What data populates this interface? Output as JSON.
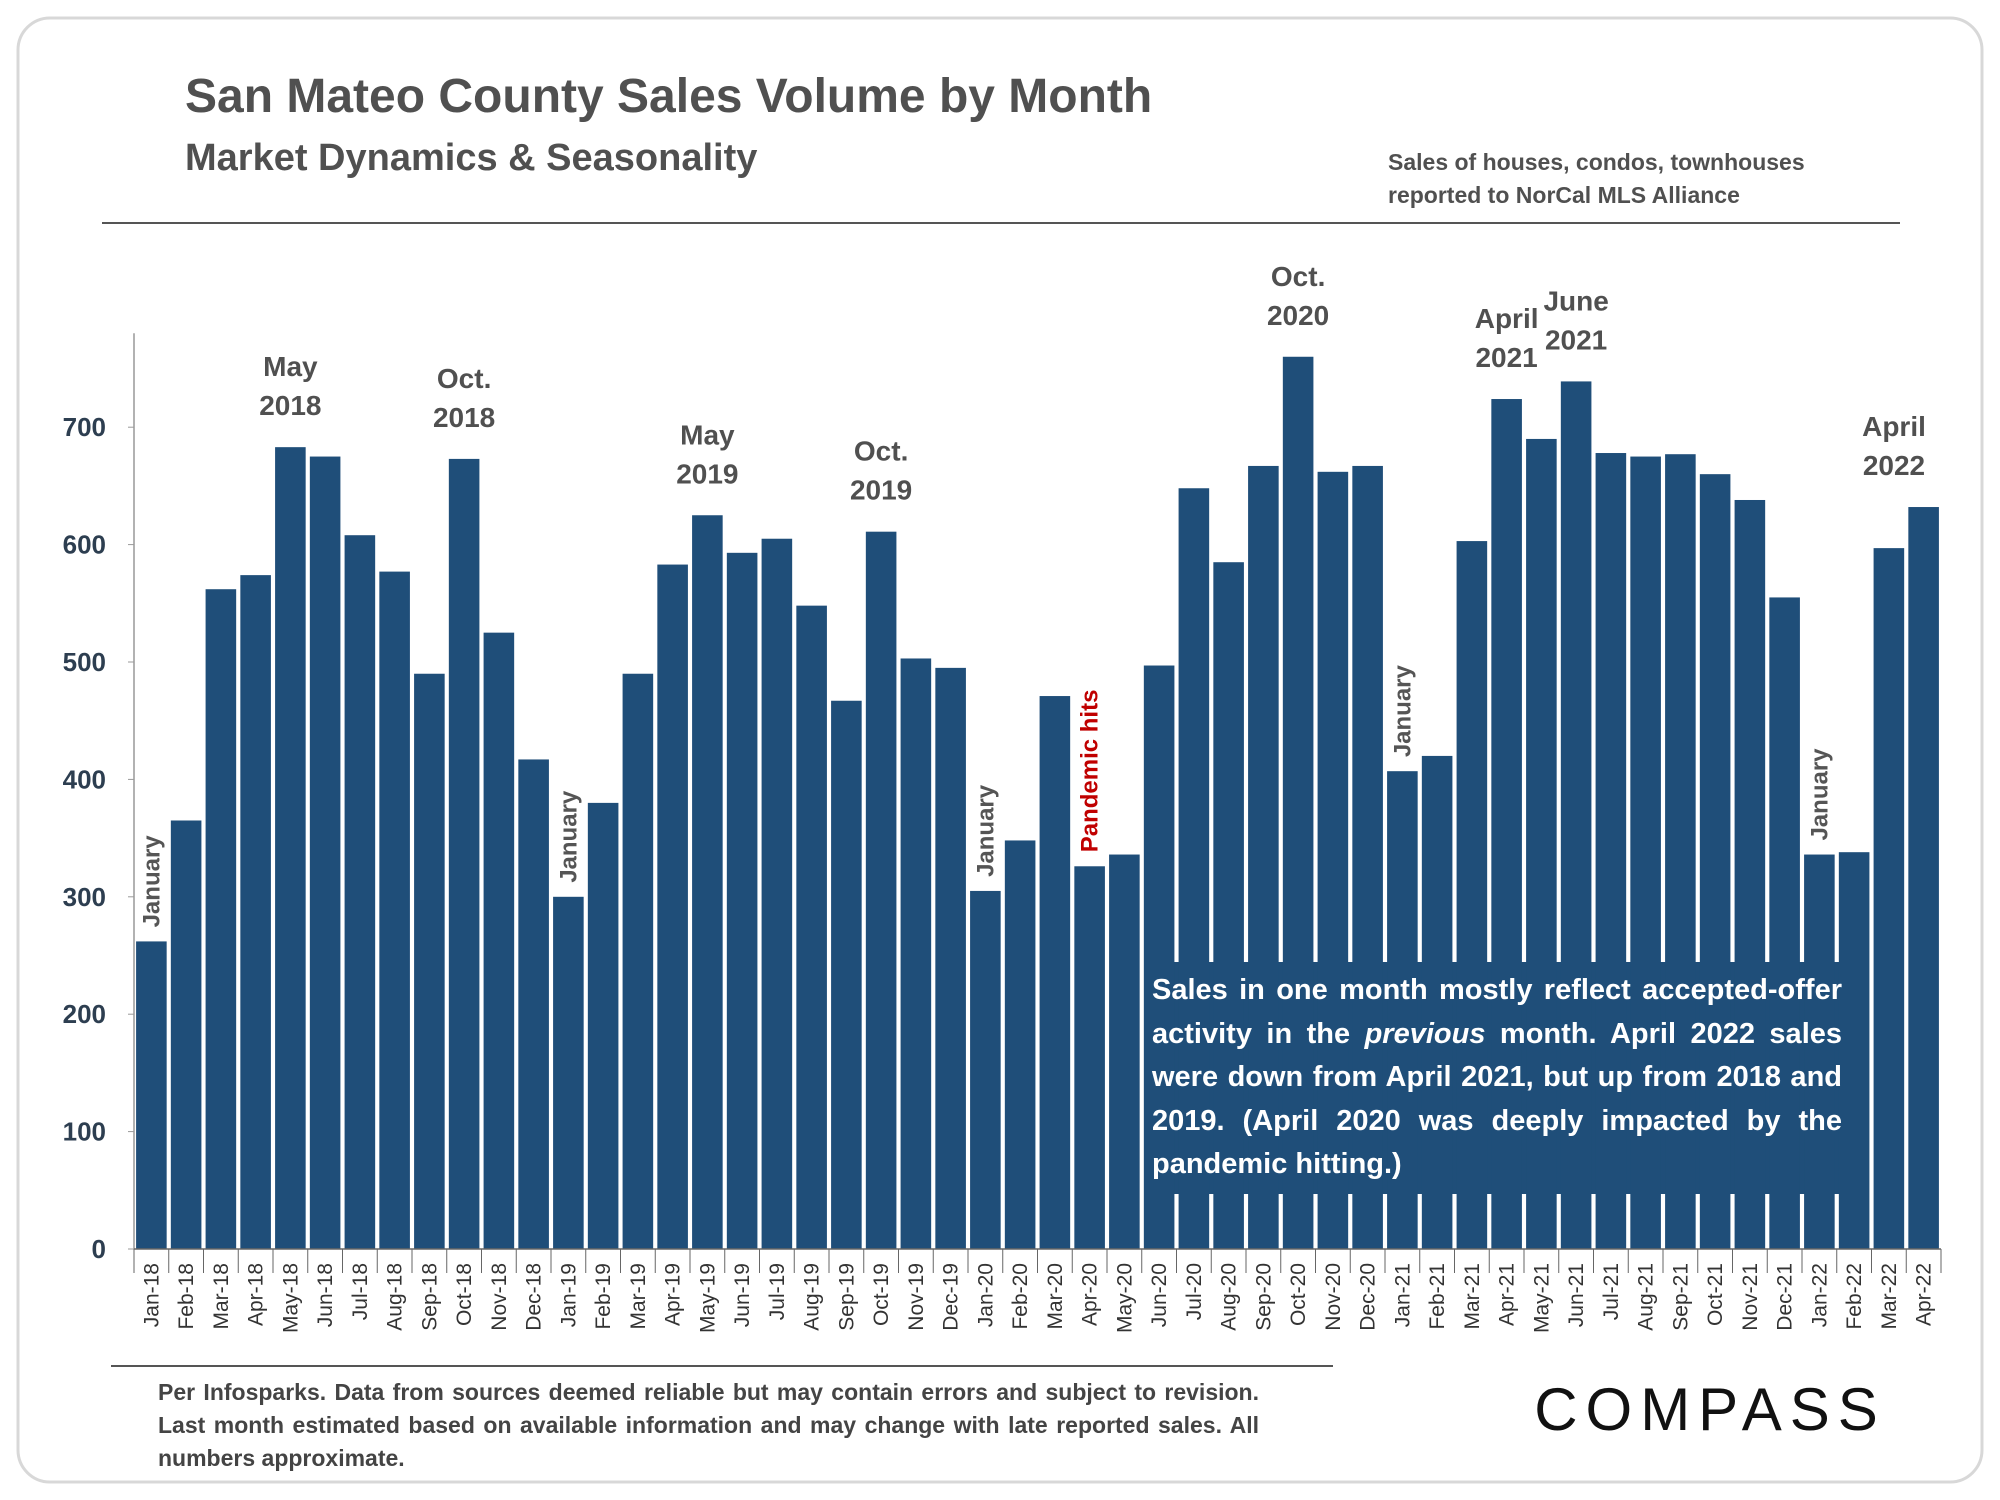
{
  "chart_data": {
    "type": "bar",
    "title": "San Mateo County Sales Volume by Month",
    "subtitle": "Market Dynamics & Seasonality",
    "source": [
      "Sales of houses, condos, townhouses",
      "reported to NorCal MLS Alliance"
    ],
    "categories": [
      "Jan-18",
      "Feb-18",
      "Mar-18",
      "Apr-18",
      "May-18",
      "Jun-18",
      "Jul-18",
      "Aug-18",
      "Sep-18",
      "Oct-18",
      "Nov-18",
      "Dec-18",
      "Jan-19",
      "Feb-19",
      "Mar-19",
      "Apr-19",
      "May-19",
      "Jun-19",
      "Jul-19",
      "Aug-19",
      "Sep-19",
      "Oct-19",
      "Nov-19",
      "Dec-19",
      "Jan-20",
      "Feb-20",
      "Mar-20",
      "Apr-20",
      "May-20",
      "Jun-20",
      "Jul-20",
      "Aug-20",
      "Sep-20",
      "Oct-20",
      "Nov-20",
      "Dec-20",
      "Jan-21",
      "Feb-21",
      "Mar-21",
      "Apr-21",
      "May-21",
      "Jun-21",
      "Jul-21",
      "Aug-21",
      "Sep-21",
      "Oct-21",
      "Nov-21",
      "Dec-21",
      "Jan-22",
      "Feb-22",
      "Mar-22",
      "Apr-22"
    ],
    "values": [
      262,
      365,
      562,
      574,
      683,
      675,
      608,
      577,
      490,
      673,
      525,
      417,
      300,
      380,
      490,
      583,
      625,
      593,
      605,
      548,
      467,
      611,
      503,
      495,
      305,
      348,
      471,
      326,
      336,
      497,
      648,
      585,
      667,
      760,
      662,
      667,
      407,
      420,
      603,
      724,
      690,
      739,
      678,
      675,
      677,
      660,
      638,
      555,
      336,
      338,
      597,
      632
    ],
    "color": "#1f4e79",
    "ylim": [
      0,
      780
    ],
    "yticks": [
      0,
      100,
      200,
      300,
      400,
      500,
      600,
      700
    ],
    "peak_labels": [
      {
        "text": [
          "May",
          "2018"
        ],
        "at": "May-18"
      },
      {
        "text": [
          "Oct.",
          "2018"
        ],
        "at": "Oct-18"
      },
      {
        "text": [
          "May",
          "2019"
        ],
        "at": "May-19"
      },
      {
        "text": [
          "Oct.",
          "2019"
        ],
        "at": "Oct-19"
      },
      {
        "text": [
          "Oct.",
          "2020"
        ],
        "at": "Oct-20"
      },
      {
        "text": [
          "April",
          "2021"
        ],
        "at": "Apr-21"
      },
      {
        "text": [
          "June",
          "2021"
        ],
        "at": "Jun-21"
      },
      {
        "text": [
          "April",
          "2022"
        ],
        "at": "Apr-22"
      }
    ],
    "vertical_labels": [
      {
        "text": "January",
        "at": "Jan-18",
        "color": "#555555"
      },
      {
        "text": "January",
        "at": "Jan-19",
        "color": "#555555"
      },
      {
        "text": "January",
        "at": "Jan-20",
        "color": "#555555"
      },
      {
        "text": "Pandemic hits",
        "at": "Apr-20",
        "color": "#c00000"
      },
      {
        "text": "January",
        "at": "Jan-21",
        "color": "#555555"
      },
      {
        "text": "January",
        "at": "Jan-22",
        "color": "#555555"
      }
    ],
    "note": [
      "Sales in one month mostly reflect accepted-offer activity in the ",
      "previous",
      " month. April 2022 sales were down from April 2021, but up from 2018 and 2019. (April 2020 was deeply impacted by the pandemic hitting.)"
    ],
    "footer": "Per Infosparks. Data from sources deemed reliable but may contain errors and subject to revision. Last month estimated based on available information and may change with late reported sales. All numbers approximate.",
    "logo": "COMPASS"
  }
}
